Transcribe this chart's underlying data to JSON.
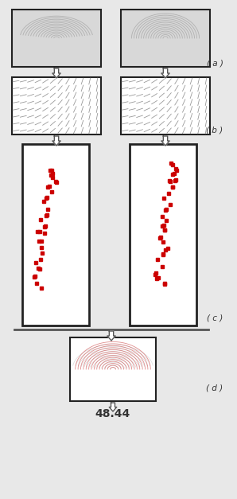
{
  "bg_color": "#e8e8e8",
  "border_color": "#333333",
  "label_a": "( a )",
  "label_b": "( b )",
  "label_c": "( c )",
  "label_d": "( d )",
  "score_text": "48.44",
  "arrow_color": "#666666",
  "red_color": "#cc0000",
  "fingerprint_line_color": "#888888",
  "figure_bg": "#e8e8e8"
}
